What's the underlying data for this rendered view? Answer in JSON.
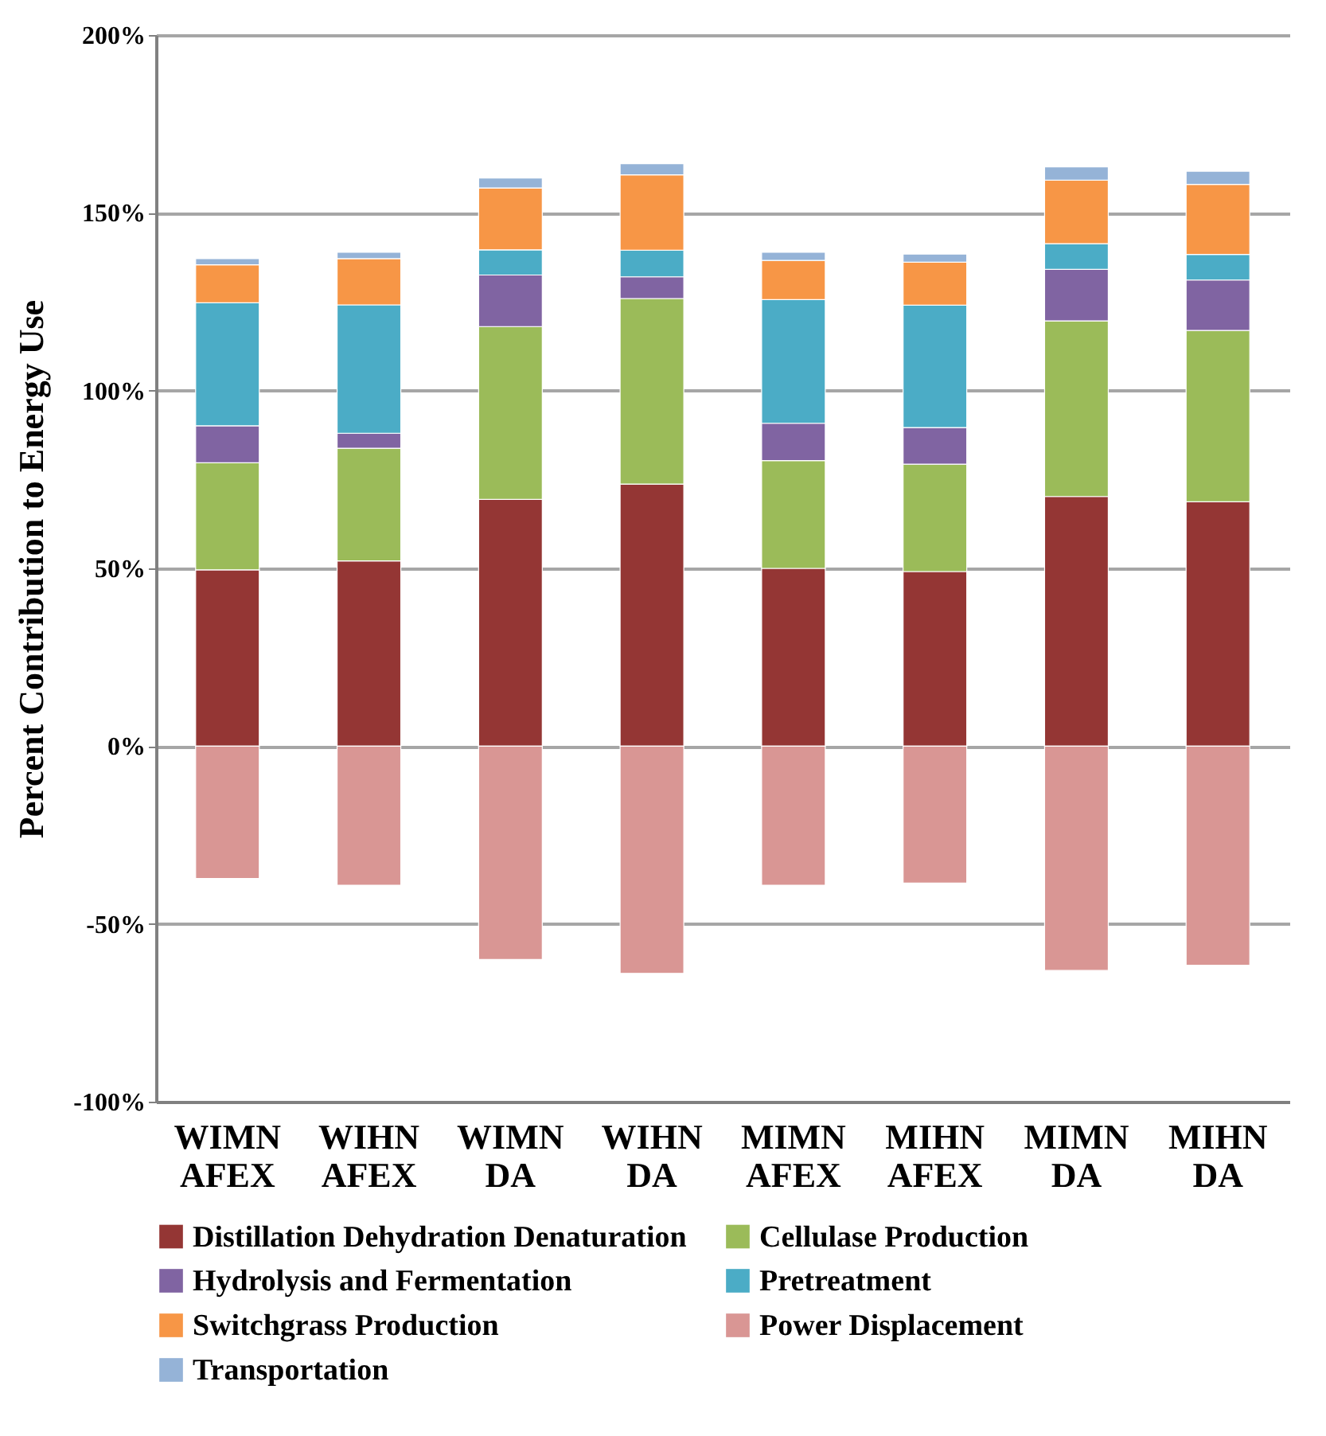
{
  "chart_data": {
    "type": "bar",
    "stacked": true,
    "ylabel": "Percent Contribution to Energy Use",
    "categories": [
      "WIMN AFEX",
      "WIHN AFEX",
      "WIMN DA",
      "WIHN DA",
      "MIMN AFEX",
      "MIHN AFEX",
      "MIMN DA",
      "MIHN DA"
    ],
    "series": [
      {
        "name": "Distillation Dehydration Denaturation",
        "color": "#943634",
        "values": [
          49.6,
          52.1,
          69.4,
          73.7,
          50.0,
          49.1,
          70.2,
          68.7
        ]
      },
      {
        "name": "Cellulase Production",
        "color": "#9bbb59",
        "values": [
          30.1,
          31.7,
          48.6,
          52.2,
          30.3,
          30.2,
          49.4,
          48.2
        ]
      },
      {
        "name": "Hydrolysis and Fermentation",
        "color": "#8064a2",
        "values": [
          10.4,
          4.2,
          14.5,
          6.1,
          10.5,
          10.3,
          14.5,
          14.2
        ]
      },
      {
        "name": "Pretreatment",
        "color": "#4bacc6",
        "values": [
          34.6,
          36.1,
          7.1,
          7.5,
          34.8,
          34.4,
          7.2,
          7.2
        ]
      },
      {
        "name": "Switchgrass Production",
        "color": "#f79646",
        "values": [
          10.7,
          13.0,
          17.4,
          21.2,
          11.0,
          12.1,
          17.9,
          19.7
        ]
      },
      {
        "name": "Power Displacement",
        "color": "#d99694",
        "values": [
          -37.2,
          -39.1,
          -60.0,
          -63.9,
          -39.1,
          -38.5,
          -63.1,
          -61.6
        ]
      },
      {
        "name": "Transportation",
        "color": "#95b3d7",
        "values": [
          1.7,
          1.8,
          2.8,
          3.1,
          2.3,
          2.3,
          3.7,
          3.7
        ]
      }
    ],
    "ylim": [
      -100,
      200
    ],
    "yticks": [
      {
        "value": -100,
        "label": "-100%"
      },
      {
        "value": -50,
        "label": "-50%"
      },
      {
        "value": 0,
        "label": "0%"
      },
      {
        "value": 50,
        "label": "50%"
      },
      {
        "value": 100,
        "label": "100%"
      },
      {
        "value": 150,
        "label": "150%"
      },
      {
        "value": 200,
        "label": "200%"
      }
    ],
    "grid": "y",
    "legend": "bottom"
  }
}
